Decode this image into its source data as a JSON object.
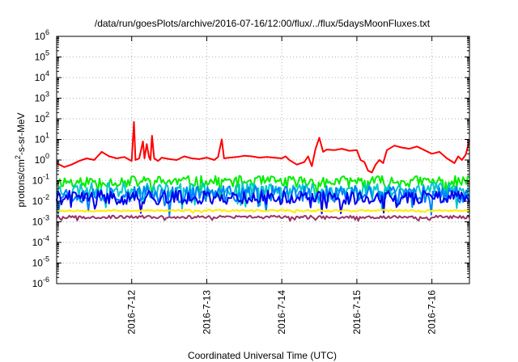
{
  "chart_data": {
    "type": "line",
    "title": "/data/run/goesPlots/archive/2016-07-16/12:00/flux/../flux/5daysMoonFluxes.txt",
    "xlabel": "Coordinated Universal Time (UTC)",
    "ylabel": "protons/cm²-s-sr-MeV",
    "ylabel_parts": {
      "before": "protons/cm",
      "sup": "2",
      "after": "-s-sr-MeV"
    },
    "yscale": "log",
    "ylim_exp": [
      -6,
      6
    ],
    "y_tick_labels": [
      {
        "base": "10",
        "exp": "-6"
      },
      {
        "base": "10",
        "exp": "-5"
      },
      {
        "base": "10",
        "exp": "-4"
      },
      {
        "base": "10",
        "exp": "-3"
      },
      {
        "base": "10",
        "exp": "-2"
      },
      {
        "base": "10",
        "exp": "-1"
      },
      {
        "base": "10",
        "exp": "0"
      },
      {
        "base": "10",
        "exp": "1"
      },
      {
        "base": "10",
        "exp": "2"
      },
      {
        "base": "10",
        "exp": "3"
      },
      {
        "base": "10",
        "exp": "4"
      },
      {
        "base": "10",
        "exp": "5"
      },
      {
        "base": "10",
        "exp": "6"
      }
    ],
    "xlim_days": [
      11.0,
      16.5
    ],
    "x_ticks": [
      {
        "day": 12,
        "label": "2016-7-12"
      },
      {
        "day": 13,
        "label": "2016-7-13"
      },
      {
        "day": 14,
        "label": "2016-7-14"
      },
      {
        "day": 15,
        "label": "2016-7-15"
      },
      {
        "day": 16,
        "label": "2016-7-16"
      }
    ],
    "grid": true,
    "series": [
      {
        "color": "#ff0000",
        "kind": "points",
        "points": [
          [
            11.0,
            0.7
          ],
          [
            11.1,
            0.45
          ],
          [
            11.2,
            0.6
          ],
          [
            11.3,
            0.9
          ],
          [
            11.4,
            1.2
          ],
          [
            11.5,
            1.0
          ],
          [
            11.6,
            2.5
          ],
          [
            11.7,
            1.5
          ],
          [
            11.8,
            1.2
          ],
          [
            11.9,
            1.4
          ],
          [
            12.0,
            0.9
          ],
          [
            12.03,
            70
          ],
          [
            12.05,
            1.0
          ],
          [
            12.1,
            1.2
          ],
          [
            12.15,
            8
          ],
          [
            12.17,
            1.2
          ],
          [
            12.2,
            6
          ],
          [
            12.23,
            1.4
          ],
          [
            12.25,
            1.0
          ],
          [
            12.27,
            15
          ],
          [
            12.3,
            1.2
          ],
          [
            12.35,
            0.9
          ],
          [
            12.4,
            1.3
          ],
          [
            12.5,
            1.1
          ],
          [
            12.6,
            1.0
          ],
          [
            12.7,
            1.5
          ],
          [
            12.8,
            1.2
          ],
          [
            12.9,
            1.1
          ],
          [
            13.0,
            1.3
          ],
          [
            13.1,
            1.0
          ],
          [
            13.15,
            1.4
          ],
          [
            13.2,
            10
          ],
          [
            13.23,
            1.2
          ],
          [
            13.3,
            1.3
          ],
          [
            13.4,
            1.4
          ],
          [
            13.5,
            1.6
          ],
          [
            13.6,
            1.5
          ],
          [
            13.7,
            1.3
          ],
          [
            13.8,
            1.4
          ],
          [
            13.9,
            1.3
          ],
          [
            14.0,
            1.2
          ],
          [
            14.05,
            1.5
          ],
          [
            14.1,
            1.0
          ],
          [
            14.2,
            0.6
          ],
          [
            14.3,
            0.8
          ],
          [
            14.35,
            1.5
          ],
          [
            14.4,
            0.5
          ],
          [
            14.45,
            3.5
          ],
          [
            14.5,
            12
          ],
          [
            14.55,
            2.5
          ],
          [
            14.6,
            3.2
          ],
          [
            14.7,
            3.0
          ],
          [
            14.8,
            3.5
          ],
          [
            14.9,
            2.8
          ],
          [
            15.0,
            3.0
          ],
          [
            15.05,
            1.0
          ],
          [
            15.1,
            0.8
          ],
          [
            15.15,
            0.3
          ],
          [
            15.2,
            0.25
          ],
          [
            15.25,
            0.6
          ],
          [
            15.3,
            1.0
          ],
          [
            15.35,
            0.7
          ],
          [
            15.4,
            3.0
          ],
          [
            15.5,
            5.0
          ],
          [
            15.6,
            4.0
          ],
          [
            15.7,
            3.5
          ],
          [
            15.8,
            4.5
          ],
          [
            15.9,
            3.0
          ],
          [
            16.0,
            2.0
          ],
          [
            16.1,
            2.5
          ],
          [
            16.2,
            1.2
          ],
          [
            16.3,
            0.7
          ],
          [
            16.35,
            1.5
          ],
          [
            16.4,
            1.0
          ],
          [
            16.45,
            1.8
          ],
          [
            16.5,
            9
          ]
        ]
      },
      {
        "color": "#00ee00",
        "kind": "band",
        "center": 0.09,
        "spread": 1.9,
        "seed": 11
      },
      {
        "color": "#00c8c8",
        "kind": "band",
        "center": 0.035,
        "spread": 2.3,
        "seed": 23
      },
      {
        "color": "#0080ff",
        "kind": "band",
        "center": 0.022,
        "spread": 2.6,
        "seed": 37
      },
      {
        "color": "#0000ee",
        "kind": "band",
        "center": 0.015,
        "spread": 2.2,
        "seed": 41
      },
      {
        "color": "#ffee00",
        "kind": "band",
        "center": 0.0035,
        "spread": 1.12,
        "seed": 53
      },
      {
        "color": "#993366",
        "kind": "band",
        "center": 0.0017,
        "spread": 1.18,
        "seed": 67
      }
    ]
  }
}
